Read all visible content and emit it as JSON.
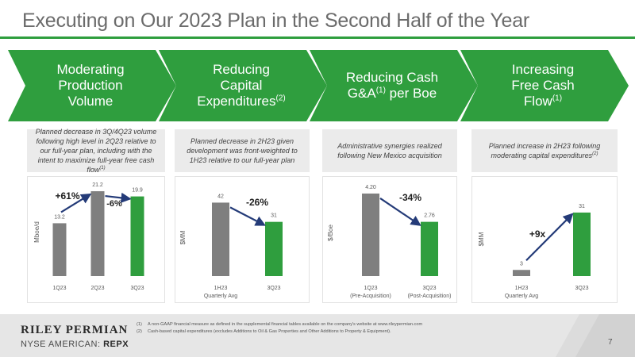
{
  "title": "Executing on Our 2023 Plan in the Second Half of the Year",
  "colors": {
    "green": "#2f9e3e",
    "gray": "#7f7f7f",
    "arrow": "#243b78"
  },
  "chevrons": [
    {
      "lines": [
        "Moderating",
        "Production",
        "Volume"
      ],
      "sup": ""
    },
    {
      "lines": [
        "Reducing",
        "Capital",
        "Expenditures"
      ],
      "sup": "(2)"
    },
    {
      "lines": [
        "Reducing Cash",
        "G&A"
      ],
      "sup": "(1)",
      "tail": " per Boe"
    },
    {
      "lines": [
        "Increasing",
        "Free Cash",
        "Flow"
      ],
      "sup": "(1)"
    }
  ],
  "descriptions": [
    {
      "text": "Planned decrease in 3Q/4Q23 volume following high level in 2Q23 relative to our full-year plan, including with the intent to maximize full-year free cash flow",
      "sup": "(1)"
    },
    {
      "text": "Planned decrease in 2H23 given development was front-weighted to 1H23 relative to our full-year plan",
      "sup": ""
    },
    {
      "text": "Administrative synergies realized following New Mexico acquisition",
      "sup": ""
    },
    {
      "text": "Planned increase in 2H23 following moderating capital expenditures",
      "sup": "(2)"
    }
  ],
  "chart_data": [
    {
      "type": "bar",
      "ylabel": "Mboe/d",
      "categories": [
        "1Q23",
        "2Q23",
        "3Q23"
      ],
      "values": [
        13.2,
        21.2,
        19.9
      ],
      "value_labels": [
        "13.2",
        "21.2",
        "19.9"
      ],
      "bar_colors": [
        "#7f7f7f",
        "#7f7f7f",
        "#2f9e3e"
      ],
      "ylim": [
        0,
        22
      ],
      "annotations": [
        "+61%",
        "-6%"
      ]
    },
    {
      "type": "bar",
      "ylabel": "$MM",
      "categories": [
        "1H23",
        "3Q23"
      ],
      "sublabels": [
        "Quarterly Avg",
        ""
      ],
      "values": [
        42,
        31
      ],
      "value_labels": [
        "42",
        "31"
      ],
      "bar_colors": [
        "#7f7f7f",
        "#2f9e3e"
      ],
      "ylim": [
        0,
        44
      ],
      "annotations": [
        "-26%"
      ]
    },
    {
      "type": "bar",
      "ylabel": "$/Boe",
      "categories": [
        "1Q23",
        "3Q23"
      ],
      "sublabels": [
        "(Pre-Acquisition)",
        "(Post-Acquisition)"
      ],
      "values": [
        4.2,
        2.76
      ],
      "value_labels": [
        "4.20",
        "2.76"
      ],
      "bar_colors": [
        "#7f7f7f",
        "#2f9e3e"
      ],
      "ylim": [
        0,
        4.4
      ],
      "annotations": [
        "-34%"
      ]
    },
    {
      "type": "bar",
      "ylabel": "$MM",
      "categories": [
        "1H23",
        "3Q23"
      ],
      "sublabels": [
        "Quarterly Avg",
        ""
      ],
      "values": [
        3,
        31
      ],
      "value_labels": [
        "3",
        "31"
      ],
      "bar_colors": [
        "#7f7f7f",
        "#2f9e3e"
      ],
      "ylim": [
        0,
        36
      ],
      "annotations": [
        "+9x"
      ]
    }
  ],
  "footer": {
    "company": "RILEY PERMIAN",
    "exchange": "NYSE AMERICAN:",
    "ticker": "REPX",
    "footnotes": [
      {
        "num": "(1)",
        "text": "A non-GAAP financial measure as defined in the supplemental financial tables available on the company's website at www.rileypermian.com"
      },
      {
        "num": "(2)",
        "text": "Cash-based capital expenditures (excludes Additions to Oil & Gas Properties and Other Additions to Property & Equipment)."
      }
    ],
    "page_number": "7"
  }
}
